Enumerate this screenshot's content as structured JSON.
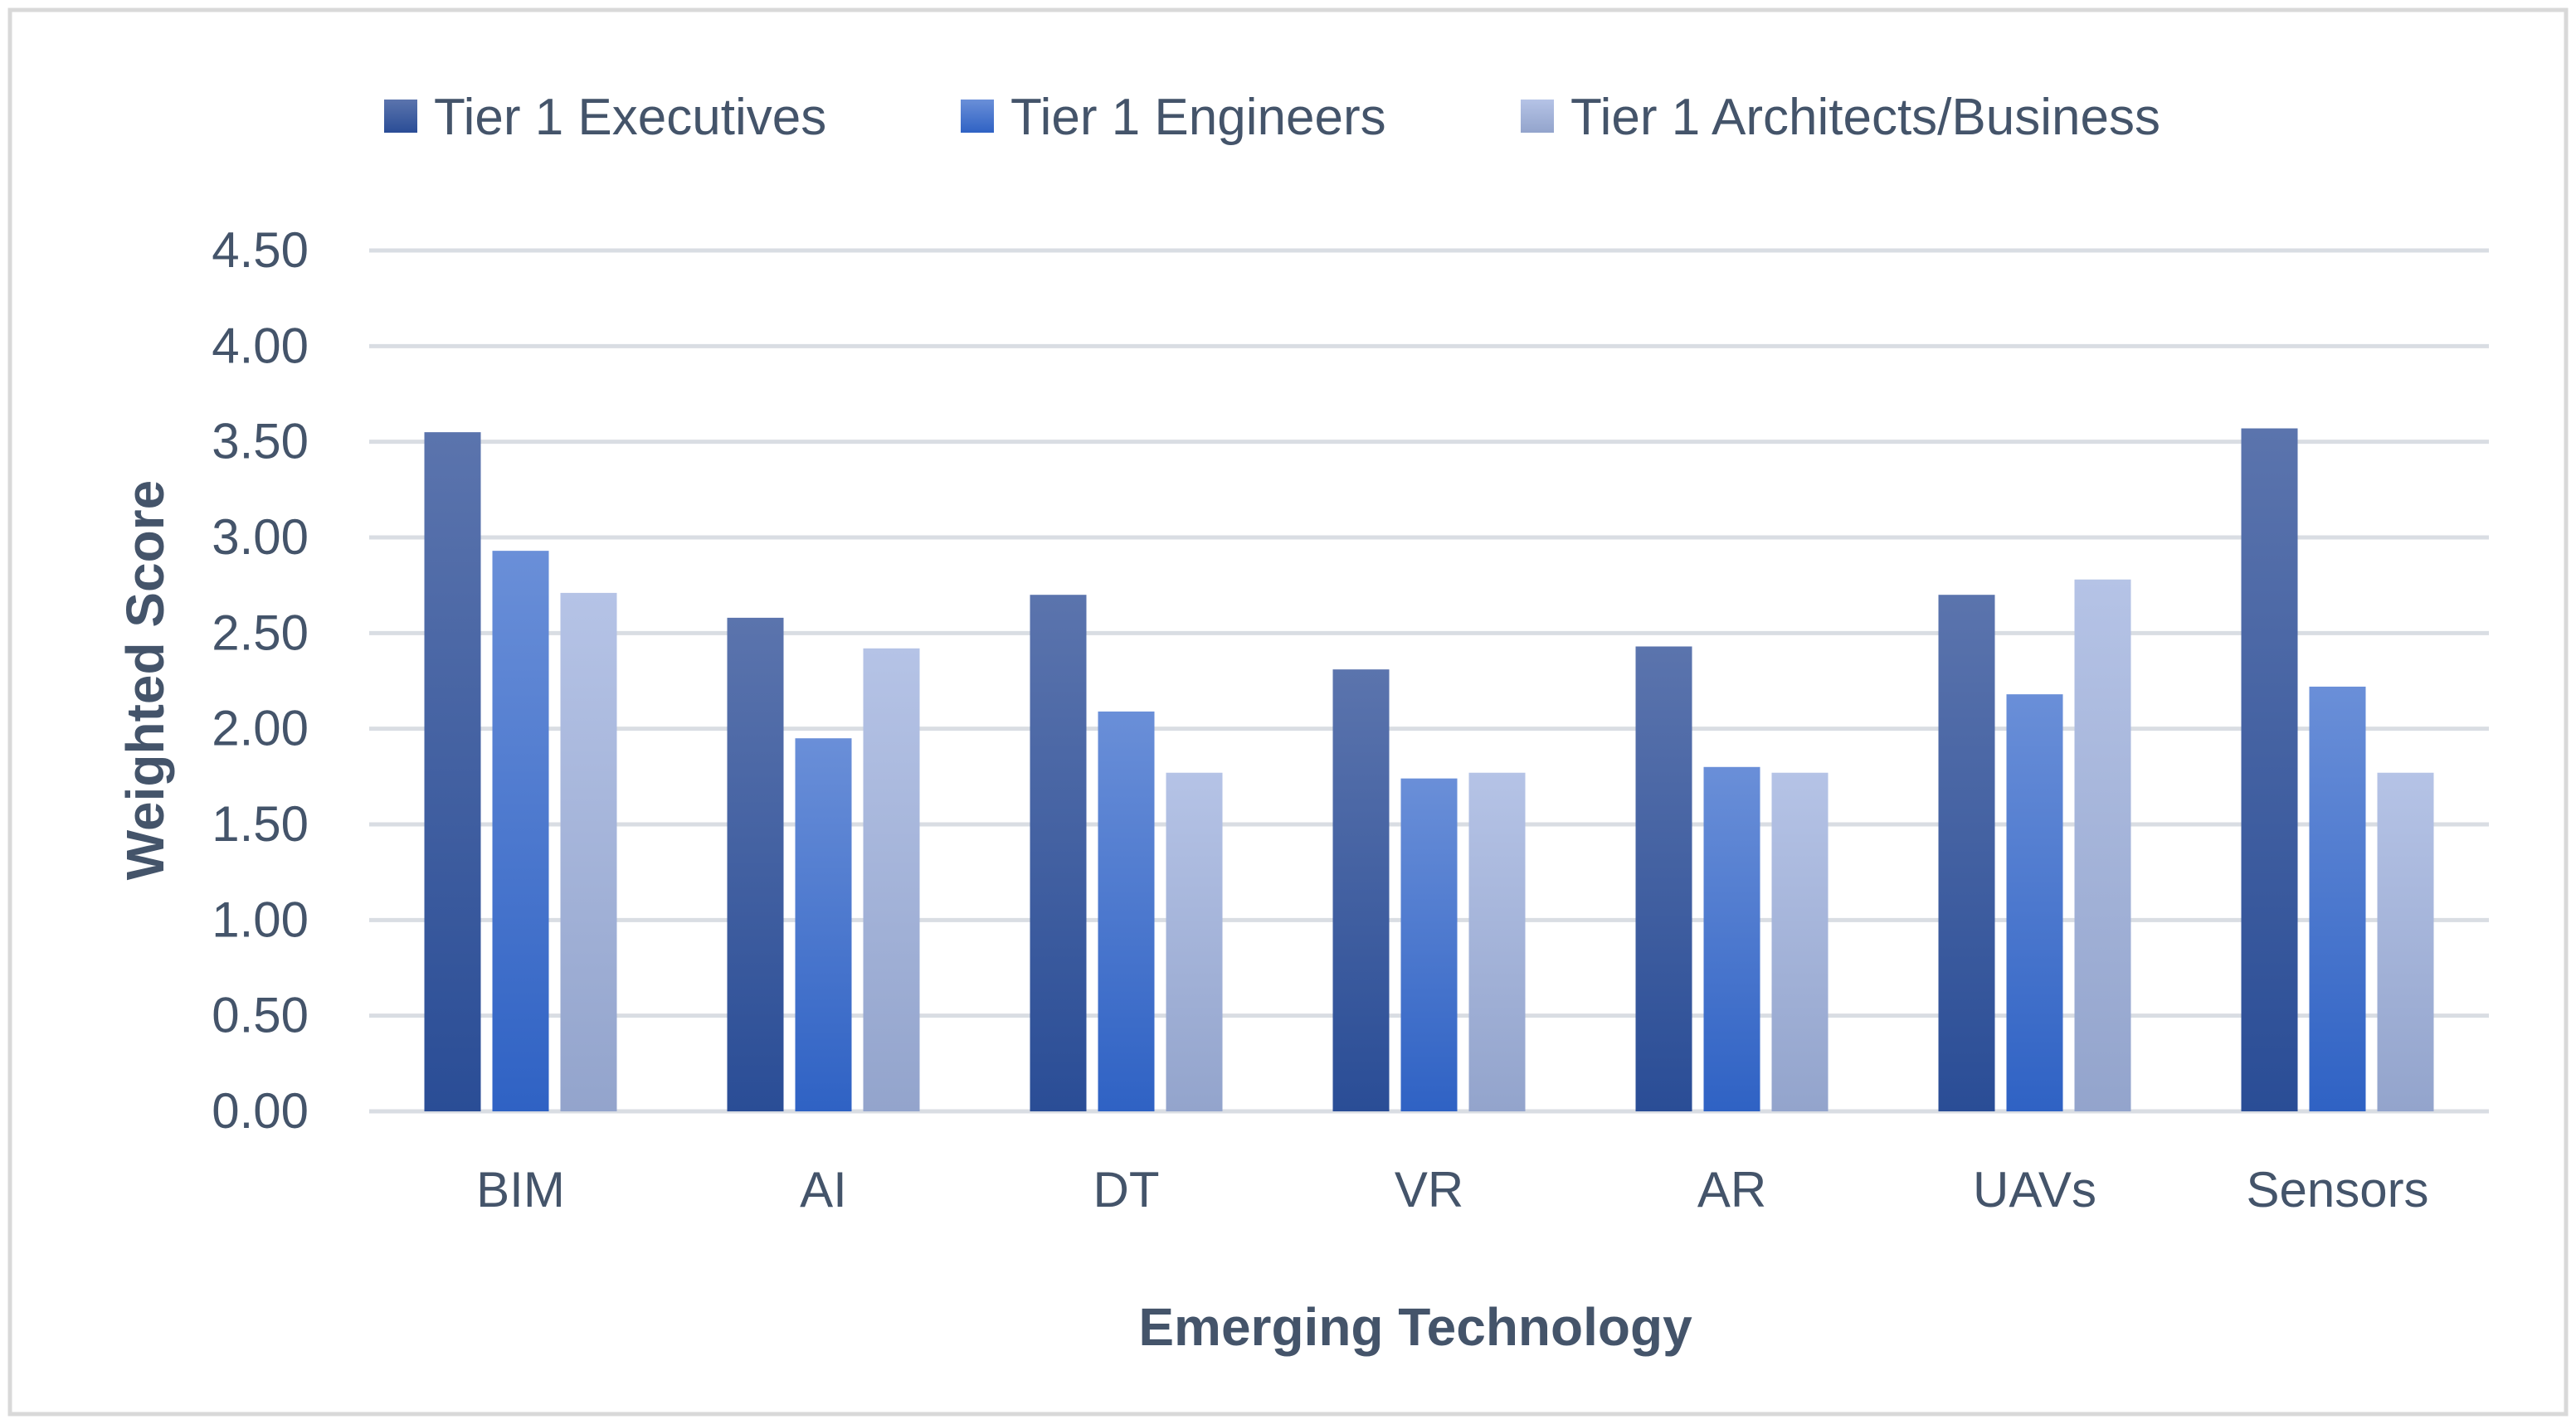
{
  "chart_data": {
    "type": "bar",
    "title": "",
    "xlabel": "Emerging Technology",
    "ylabel": "Weighted Score",
    "ylim": [
      0,
      4.5
    ],
    "yticks": [
      "0.00",
      "0.50",
      "1.00",
      "1.50",
      "2.00",
      "2.50",
      "3.00",
      "3.50",
      "4.00",
      "4.50"
    ],
    "ytick_values": [
      0,
      0.5,
      1.0,
      1.5,
      2.0,
      2.5,
      3.0,
      3.5,
      4.0,
      4.5
    ],
    "grid": true,
    "legend_position": "top",
    "categories": [
      "BIM",
      "AI",
      "DT",
      "VR",
      "AR",
      "UAVs",
      "Sensors"
    ],
    "series": [
      {
        "name": "Tier 1 Executives",
        "color_top": "#5b74ad",
        "color_bottom": "#2a4d96",
        "values": [
          3.55,
          2.58,
          2.7,
          2.31,
          2.43,
          2.7,
          3.57
        ]
      },
      {
        "name": "Tier 1 Engineers",
        "color_top": "#6a8fd8",
        "color_bottom": "#2f62c4",
        "values": [
          2.93,
          1.95,
          2.09,
          1.74,
          1.8,
          2.18,
          2.22
        ]
      },
      {
        "name": "Tier 1 Architects/Business",
        "color_top": "#b5c3e6",
        "color_bottom": "#93a4cc",
        "values": [
          2.71,
          2.42,
          1.77,
          1.77,
          1.77,
          2.78,
          1.77
        ]
      }
    ]
  }
}
